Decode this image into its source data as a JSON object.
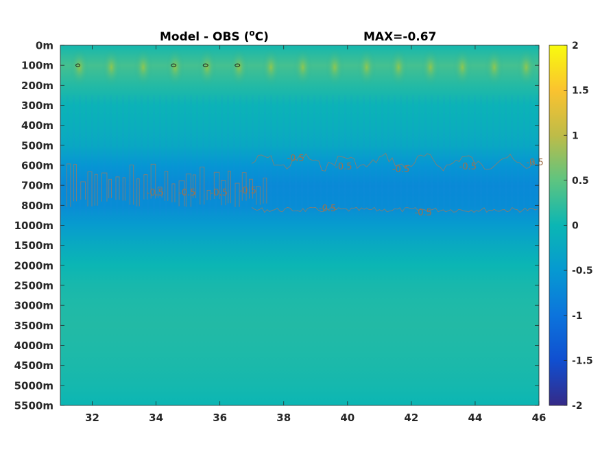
{
  "chart_data": {
    "type": "heatmap",
    "title": "Model - OBS (",
    "title_sup": "o",
    "title_unit_tail": "C)",
    "max_label": "MAX=-0.67",
    "colormap": "parula",
    "clim": [
      -2,
      2
    ],
    "x_ticks": [
      "32",
      "34",
      "36",
      "38",
      "40",
      "42",
      "44",
      "46"
    ],
    "x_tick_values": [
      32,
      34,
      36,
      38,
      40,
      42,
      44,
      46
    ],
    "xlim": [
      31,
      46
    ],
    "y_ticks": [
      "0m",
      "100m",
      "200m",
      "300m",
      "400m",
      "500m",
      "600m",
      "700m",
      "800m",
      "1000m",
      "1500m",
      "2000m",
      "2500m",
      "3000m",
      "3500m",
      "4000m",
      "4500m",
      "5000m",
      "5500m"
    ],
    "colorbar_ticks": [
      "2",
      "1.5",
      "1",
      "0.5",
      "0",
      "-0.5",
      "-1",
      "-1.5",
      "-2"
    ],
    "colorbar_tick_values": [
      2,
      1.5,
      1,
      0.5,
      0,
      -0.5,
      -1,
      -1.5,
      -2
    ],
    "contour_level": -0.5,
    "contour_labels": [
      {
        "text": "-0.5",
        "x": 38.1,
        "depth_index": 5.8
      },
      {
        "text": "-0.5",
        "x": 39.6,
        "depth_index": 6.2
      },
      {
        "text": "-0.5",
        "x": 41.4,
        "depth_index": 6.35
      },
      {
        "text": "-0.5",
        "x": 43.5,
        "depth_index": 6.2
      },
      {
        "text": "-0.5",
        "x": 45.6,
        "depth_index": 6.0
      },
      {
        "text": "-0.5",
        "x": 39.1,
        "depth_index": 8.3
      },
      {
        "text": "-0.5",
        "x": 42.1,
        "depth_index": 8.5
      },
      {
        "text": "-0.5",
        "x": 33.7,
        "depth_index": 7.5
      },
      {
        "text": "-0.5",
        "x": 34.7,
        "depth_index": 7.5
      },
      {
        "text": "-0.5",
        "x": 35.7,
        "depth_index": 7.5
      },
      {
        "text": "-0.5",
        "x": 36.6,
        "depth_index": 7.4
      }
    ],
    "depth_profile": [
      0.05,
      0.35,
      0.15,
      -0.05,
      -0.12,
      -0.25,
      -0.55,
      -0.72,
      -0.68,
      -0.45,
      -0.2,
      0.0,
      0.08,
      0.12,
      0.14,
      0.12,
      0.1,
      0.06,
      0.0
    ],
    "warm_patch_x": [
      31.6,
      32.6,
      33.6,
      34.6,
      35.6,
      36.6,
      37.6,
      38.6,
      39.6,
      40.6,
      41.6,
      42.6,
      43.6,
      44.6,
      45.6
    ]
  }
}
